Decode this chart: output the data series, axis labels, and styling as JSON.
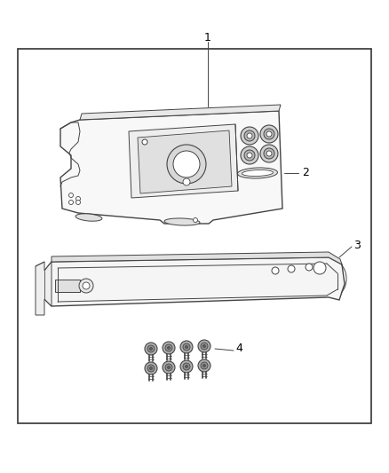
{
  "bg_color": "#ffffff",
  "border_color": "#333333",
  "line_color": "#444444",
  "label_color": "#000000",
  "figsize": [
    4.38,
    5.33
  ],
  "dpi": 100,
  "label_1": "1",
  "label_2": "2",
  "label_3": "3",
  "label_4": "4"
}
